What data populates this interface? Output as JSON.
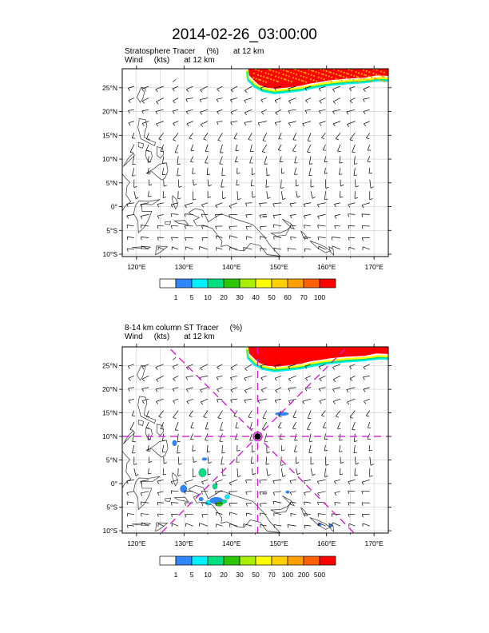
{
  "title": "2014-02-26_03:00:00",
  "panels": [
    {
      "field_name": "Stratosphere Tracer",
      "field_units": "(%)",
      "field_level": "at  12 km",
      "wind_name": "Wind",
      "wind_units": "(kts)",
      "wind_level": "at  12 km",
      "colorbar_labels": [
        "1",
        "5",
        "10",
        "20",
        "30",
        "40",
        "50",
        "60",
        "70",
        "100"
      ],
      "colorbar_colors": [
        "#ffffff",
        "#2f86ff",
        "#00f0ff",
        "#00e080",
        "#2ec800",
        "#a8f000",
        "#ffff00",
        "#ffd000",
        "#ffa000",
        "#ff6000",
        "#ff0000"
      ]
    },
    {
      "field_name": "8-14 km column ST Tracer",
      "field_units": "(%)",
      "field_level": "",
      "wind_name": "Wind",
      "wind_units": "(kts)",
      "wind_level": "at  12 km",
      "colorbar_labels": [
        "1",
        "5",
        "10",
        "20",
        "30",
        "50",
        "70",
        "100",
        "200",
        "500"
      ],
      "colorbar_colors": [
        "#ffffff",
        "#2f86ff",
        "#00f0ff",
        "#00e080",
        "#2ec800",
        "#a8f000",
        "#ffff00",
        "#ffd000",
        "#ffa000",
        "#ff6000",
        "#ff0000"
      ],
      "storm_center": {
        "lon": 145.5,
        "lat": 10.0
      }
    }
  ],
  "map": {
    "lon_range": [
      117,
      173
    ],
    "lat_range": [
      -10.5,
      29
    ],
    "lon_ticks": [
      "120°E",
      "130°E",
      "140°E",
      "150°E",
      "160°E",
      "170°E"
    ],
    "lat_ticks": [
      "10°S",
      "5°S",
      "0°",
      "5°N",
      "10°N",
      "15°N",
      "20°N",
      "25°N"
    ],
    "lon_tick_values": [
      120,
      130,
      140,
      150,
      160,
      170
    ],
    "lat_tick_values": [
      -10,
      -5,
      0,
      5,
      10,
      15,
      20,
      25
    ]
  },
  "colors": {
    "grid": "#cccccc",
    "coast": "#333333",
    "vector": "#000000",
    "guide": "#d020d0"
  }
}
